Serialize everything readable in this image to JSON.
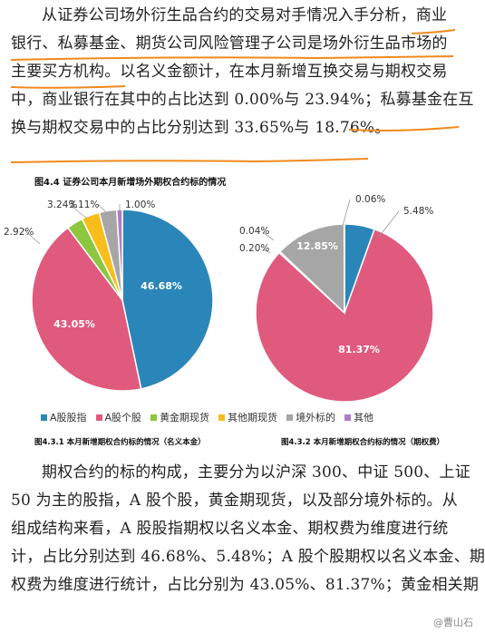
{
  "paragraph1": {
    "lines": [
      "从证券公司场外衍生品合约的交易对手情况入手分析，商业",
      "银行、私募基金、期货公司风险管理子公司是场外衍生品市场的",
      "主要买方机构。以名义金额计，在本月新增互换交易与期权交易",
      "中，商业银行在其中的占比达到 0.00%与 23.94%；私募基金在互",
      "换与期权交易中的占比分别达到 33.65%与 18.76%。"
    ]
  },
  "figure": {
    "title": "图4.4 证券公司本月新增场外期权合约标的情况",
    "caption_left": "图4.3.1 本月新增期权合约标的情况（名义本金）",
    "caption_right": "图4.3.2 本月新增期权合约标的情况（期权费）"
  },
  "colors": {
    "a_index": "#2A86B8",
    "a_stock": "#E05A7E",
    "gold": "#8DC63F",
    "other_futures": "#F7BE1B",
    "overseas": "#A6A6A6",
    "other": "#B07CC6",
    "underline": "#F08A1C"
  },
  "legend": [
    "A股股指",
    "A股个股",
    "黄金期现货",
    "其他期现货",
    "境外标的",
    "其他"
  ],
  "chart_data": [
    {
      "type": "pie",
      "categories": [
        "A股股指",
        "A股个股",
        "黄金期现货",
        "其他期现货",
        "境外标的",
        "其他"
      ],
      "values": [
        46.68,
        43.05,
        2.92,
        3.24,
        3.11,
        1.0
      ],
      "labels": [
        "46.68%",
        "43.05%",
        "2.92%",
        "3.24%",
        "3.11%",
        "1.00%"
      ]
    },
    {
      "type": "pie",
      "categories": [
        "A股股指",
        "A股个股",
        "黄金期现货",
        "其他期现货",
        "境外标的",
        "其他"
      ],
      "values": [
        5.48,
        81.37,
        0.2,
        0.04,
        12.85,
        0.06
      ],
      "labels": [
        "5.48%",
        "81.37%",
        "0.20%",
        "0.04%",
        "12.85%",
        "0.06%"
      ]
    }
  ],
  "paragraph2": {
    "lines": [
      "期权合约的标的构成，主要分为以沪深 300、中证 500、上证",
      "50 为主的股指，A 股个股，黄金期现货，以及部分境外标的。从",
      "组成结构来看，A 股股指期权以名义本金、期权费为维度进行统",
      "计，占比分别达到 46.68%、5.48%；A 股个股期权以名义本金、期",
      "权费为维度进行统计，占比分别为 43.05%、81.37%；黄金相关期"
    ]
  },
  "watermark": "@曹山石"
}
